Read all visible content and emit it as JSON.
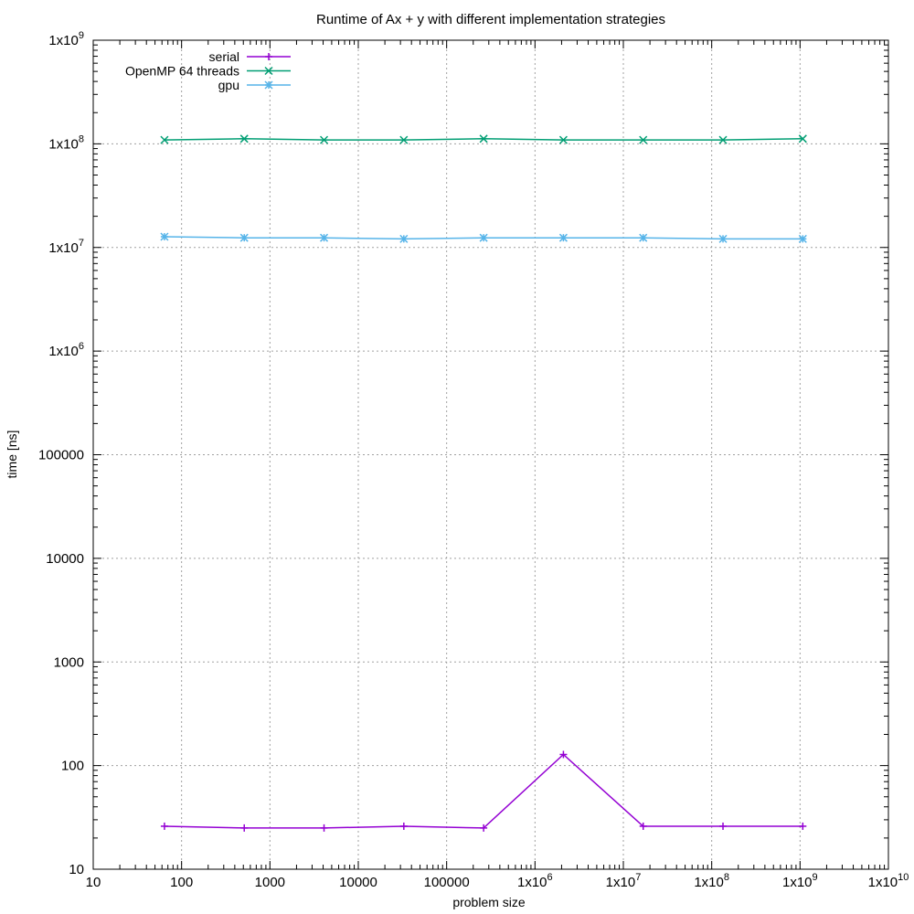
{
  "chart_data": {
    "type": "line",
    "title": "Runtime of Ax + y with different implementation strategies",
    "xlabel": "problem size",
    "ylabel": "time [ns]",
    "x_scale": "log",
    "y_scale": "log",
    "xlim": [
      10,
      10000000000
    ],
    "ylim": [
      10,
      1000000000
    ],
    "grid": true,
    "legend_position": "top-left",
    "x_ticks": [
      {
        "value": 10,
        "mant": "10",
        "exp": ""
      },
      {
        "value": 100,
        "mant": "100",
        "exp": ""
      },
      {
        "value": 1000,
        "mant": "1000",
        "exp": ""
      },
      {
        "value": 10000,
        "mant": "10000",
        "exp": ""
      },
      {
        "value": 100000,
        "mant": "100000",
        "exp": ""
      },
      {
        "value": 1000000,
        "mant": "1x10",
        "exp": "6"
      },
      {
        "value": 10000000,
        "mant": "1x10",
        "exp": "7"
      },
      {
        "value": 100000000,
        "mant": "1x10",
        "exp": "8"
      },
      {
        "value": 1000000000,
        "mant": "1x10",
        "exp": "9"
      },
      {
        "value": 10000000000,
        "mant": "1x10",
        "exp": "10"
      }
    ],
    "y_ticks": [
      {
        "value": 10,
        "mant": "10",
        "exp": ""
      },
      {
        "value": 100,
        "mant": "100",
        "exp": ""
      },
      {
        "value": 1000,
        "mant": "1000",
        "exp": ""
      },
      {
        "value": 10000,
        "mant": "10000",
        "exp": ""
      },
      {
        "value": 100000,
        "mant": "100000",
        "exp": ""
      },
      {
        "value": 1000000,
        "mant": "1x10",
        "exp": "6"
      },
      {
        "value": 10000000,
        "mant": "1x10",
        "exp": "7"
      },
      {
        "value": 100000000,
        "mant": "1x10",
        "exp": "8"
      },
      {
        "value": 1000000000,
        "mant": "1x10",
        "exp": "9"
      }
    ],
    "x": [
      64,
      512,
      4096,
      32768,
      262144,
      2097152,
      16777216,
      134217728,
      1073741824
    ],
    "series": [
      {
        "name": "serial",
        "color": "#9400d3",
        "marker": "plus",
        "values": [
          26,
          25,
          25,
          26,
          25,
          128,
          26,
          26,
          26
        ]
      },
      {
        "name": "OpenMP 64 threads",
        "color": "#009e73",
        "marker": "cross",
        "values": [
          109000000,
          112000000,
          109000000,
          109000000,
          112000000,
          109000000,
          109000000,
          109000000,
          112000000
        ]
      },
      {
        "name": "gpu",
        "color": "#56b4e9",
        "marker": "star",
        "values": [
          12700000,
          12400000,
          12400000,
          12100000,
          12400000,
          12400000,
          12400000,
          12100000,
          12100000
        ]
      }
    ]
  }
}
